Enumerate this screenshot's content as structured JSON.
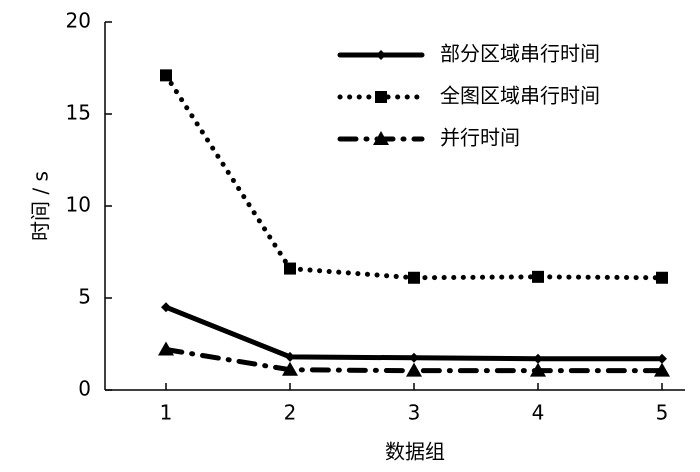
{
  "chart_data": {
    "type": "line",
    "x_label": "数据组",
    "y_label": "时间 / s",
    "categories": [
      "1",
      "2",
      "3",
      "4",
      "5"
    ],
    "ylim": [
      0,
      20
    ],
    "yticks": [
      0,
      5,
      10,
      15,
      20
    ],
    "legend": "top-right",
    "series": [
      {
        "name": "部分区域串行时间",
        "color": "#000000",
        "line_style": "solid",
        "marker": "diamond",
        "values": [
          4.5,
          1.8,
          1.75,
          1.7,
          1.7
        ]
      },
      {
        "name": "全图区域串行时间",
        "color": "#000000",
        "line_style": "dotted",
        "marker": "square",
        "values": [
          17.1,
          6.6,
          6.1,
          6.15,
          6.1
        ]
      },
      {
        "name": "并行时间",
        "color": "#000000",
        "line_style": "dashdot",
        "marker": "triangle",
        "values": [
          2.2,
          1.1,
          1.05,
          1.05,
          1.05
        ]
      }
    ]
  }
}
